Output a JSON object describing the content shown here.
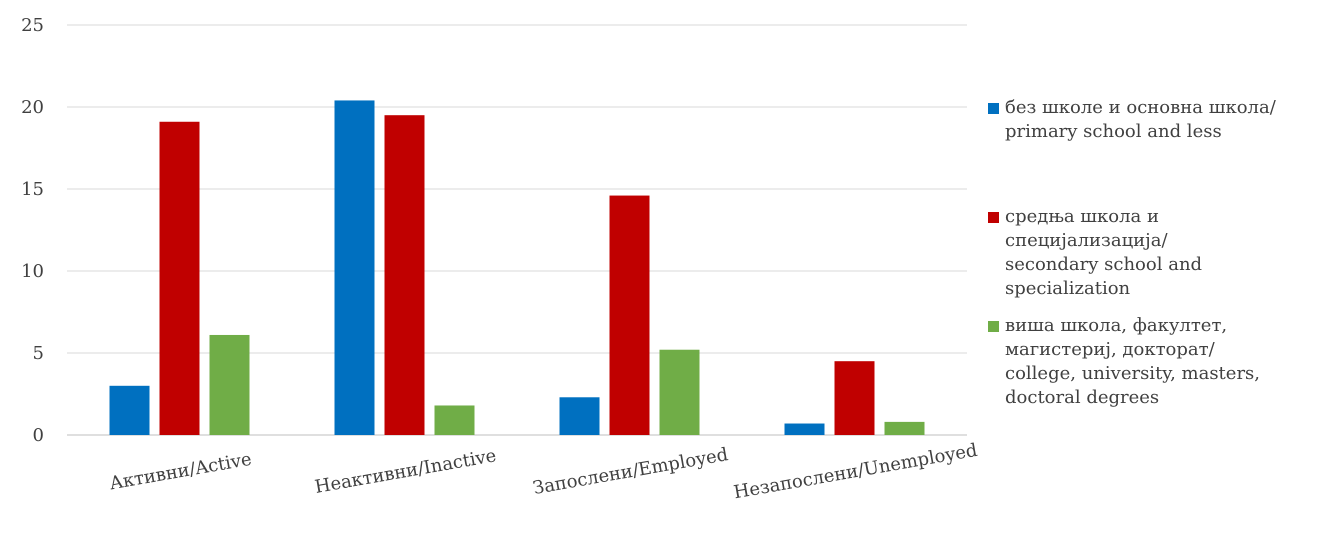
{
  "chart_data": {
    "type": "bar",
    "title": "",
    "xlabel": "",
    "ylabel": "",
    "ylim": [
      0,
      25
    ],
    "yticks": [
      0,
      5,
      10,
      15,
      20,
      25
    ],
    "grid": true,
    "legend_position": "right",
    "categories": [
      "Активни/Active",
      "Неактивни/Inactive",
      "Запослени/Employed",
      "Незапослени/Unemployed"
    ],
    "series": [
      {
        "name": "без школе и основна школа/\nprimary school and less",
        "color": "#0070C0",
        "values": [
          3.0,
          20.4,
          2.3,
          0.7
        ]
      },
      {
        "name": "средња школа и\nспецијализација/\nsecondary school and\nspecialization",
        "color": "#C00000",
        "values": [
          19.1,
          19.5,
          14.6,
          4.5
        ]
      },
      {
        "name": "виша школа, факултет,\nмагистериј, докторат/\ncollege, university, masters,\ndoctoral degrees",
        "color": "#70AD47",
        "values": [
          6.1,
          1.8,
          5.2,
          0.8
        ]
      }
    ]
  }
}
